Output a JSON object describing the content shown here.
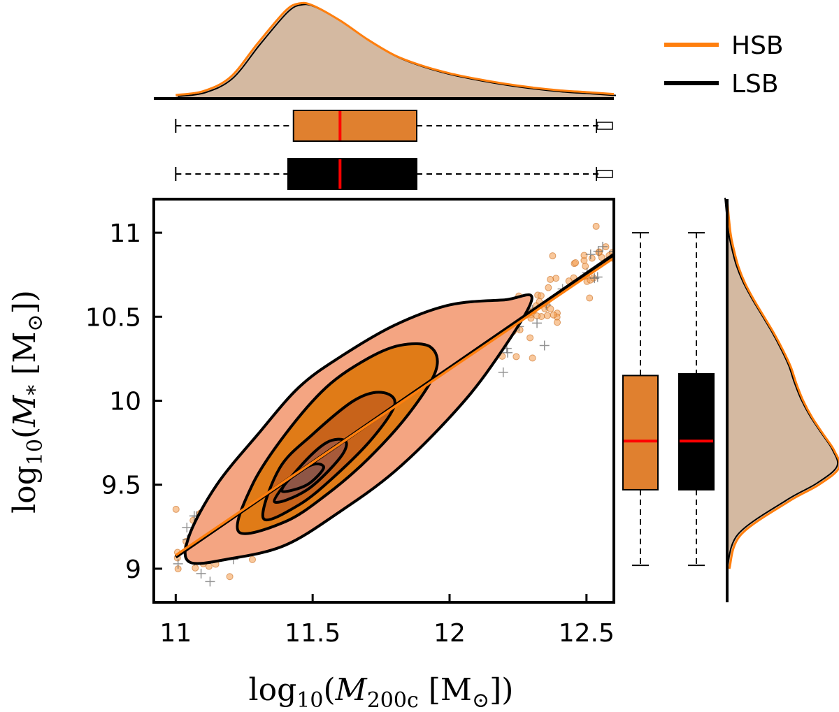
{
  "chart_data": {
    "type": "scatter",
    "xlabel_parts": {
      "pre": "log",
      "sub": "10",
      "open": "(",
      "mvar": "M",
      "msub": "200c",
      "unit": " [M",
      "sun": "⊙",
      "close": "])"
    },
    "ylabel_parts": {
      "pre": "log",
      "sub": "10",
      "open": "(",
      "mvar": "M",
      "msub": "*",
      "unit": " [M",
      "sun": "⊙",
      "close": "])"
    },
    "xlim": [
      10.92,
      12.6
    ],
    "ylim": [
      8.8,
      11.2
    ],
    "x_ticks": [
      11,
      11.5,
      12,
      12.5
    ],
    "x_tick_labels": [
      "11",
      "11.5",
      "12",
      "12.5"
    ],
    "y_ticks": [
      9,
      9.5,
      10,
      10.5,
      11
    ],
    "y_tick_labels": [
      "9",
      "9.5",
      "10",
      "10.5",
      "11"
    ],
    "series": [
      {
        "name": "HSB",
        "color": "#ff7f0e",
        "marker": "circle",
        "fit": {
          "x": [
            11,
            12.6
          ],
          "y": [
            9.08,
            10.85
          ]
        }
      },
      {
        "name": "LSB",
        "color": "#000000",
        "marker": "plus",
        "fit": {
          "x": [
            11,
            12.6
          ],
          "y": [
            9.07,
            10.87
          ]
        }
      }
    ],
    "x_marginal_boxplots": [
      {
        "series": "HSB",
        "color": "#e0802f",
        "whisker_low": 11.0,
        "q1": 11.43,
        "median": 11.6,
        "q3": 11.88,
        "whisker_high": 12.6
      },
      {
        "series": "LSB",
        "color": "#000000",
        "whisker_low": 11.0,
        "q1": 11.41,
        "median": 11.6,
        "q3": 11.88,
        "whisker_high": 12.6
      }
    ],
    "y_marginal_boxplots": [
      {
        "series": "HSB",
        "color": "#e0802f",
        "whisker_low": 9.02,
        "q1": 9.47,
        "median": 9.76,
        "q3": 10.15,
        "whisker_high": 11.0
      },
      {
        "series": "LSB",
        "color": "#000000",
        "whisker_low": 9.02,
        "q1": 9.47,
        "median": 9.76,
        "q3": 10.16,
        "whisker_high": 11.0
      }
    ],
    "x_density": {
      "x": [
        11.0,
        11.1,
        11.2,
        11.3,
        11.4,
        11.45,
        11.5,
        11.6,
        11.7,
        11.8,
        11.9,
        12.0,
        12.1,
        12.2,
        12.3,
        12.4,
        12.5,
        12.6
      ],
      "y": [
        0.03,
        0.07,
        0.22,
        0.58,
        0.92,
        1.0,
        0.98,
        0.82,
        0.62,
        0.45,
        0.34,
        0.26,
        0.2,
        0.15,
        0.11,
        0.08,
        0.06,
        0.04
      ]
    },
    "y_density": {
      "y": [
        9.0,
        9.2,
        9.4,
        9.5,
        9.6,
        9.7,
        9.8,
        9.9,
        10.0,
        10.1,
        10.2,
        10.3,
        10.4,
        10.5,
        10.6,
        10.7,
        10.8,
        10.9,
        11.0,
        11.2
      ],
      "d": [
        0.02,
        0.12,
        0.55,
        0.82,
        1.0,
        0.96,
        0.86,
        0.76,
        0.68,
        0.62,
        0.57,
        0.5,
        0.42,
        0.33,
        0.24,
        0.16,
        0.1,
        0.06,
        0.03,
        0.0
      ]
    },
    "contour_levels": [
      {
        "fill": "#f4a582",
        "pts": [
          [
            11.05,
            9.04
          ],
          [
            11.2,
            9.06
          ],
          [
            11.4,
            9.14
          ],
          [
            11.6,
            9.34
          ],
          [
            11.8,
            9.58
          ],
          [
            12.0,
            9.9
          ],
          [
            12.15,
            10.2
          ],
          [
            12.3,
            10.6
          ],
          [
            12.2,
            10.6
          ],
          [
            12.0,
            10.57
          ],
          [
            11.8,
            10.45
          ],
          [
            11.6,
            10.26
          ],
          [
            11.45,
            10.08
          ],
          [
            11.3,
            9.8
          ],
          [
            11.15,
            9.5
          ],
          [
            11.05,
            9.2
          ]
        ]
      },
      {
        "fill": "#e07b17",
        "pts": [
          [
            11.23,
            9.22
          ],
          [
            11.4,
            9.28
          ],
          [
            11.55,
            9.44
          ],
          [
            11.7,
            9.65
          ],
          [
            11.85,
            9.92
          ],
          [
            11.95,
            10.18
          ],
          [
            11.93,
            10.32
          ],
          [
            11.82,
            10.33
          ],
          [
            11.7,
            10.25
          ],
          [
            11.55,
            10.08
          ],
          [
            11.4,
            9.8
          ],
          [
            11.28,
            9.5
          ]
        ]
      },
      {
        "fill": "#c8631a",
        "pts": [
          [
            11.32,
            9.3
          ],
          [
            11.45,
            9.38
          ],
          [
            11.58,
            9.55
          ],
          [
            11.72,
            9.78
          ],
          [
            11.8,
            9.98
          ],
          [
            11.75,
            10.05
          ],
          [
            11.65,
            10.0
          ],
          [
            11.5,
            9.8
          ],
          [
            11.38,
            9.6
          ]
        ]
      },
      {
        "fill": "#a75a3a",
        "pts": [
          [
            11.36,
            9.4
          ],
          [
            11.48,
            9.47
          ],
          [
            11.6,
            9.66
          ],
          [
            11.62,
            9.76
          ],
          [
            11.55,
            9.75
          ],
          [
            11.45,
            9.6
          ]
        ]
      },
      {
        "fill": "#8e5646",
        "pts": [
          [
            11.39,
            9.46
          ],
          [
            11.48,
            9.5
          ],
          [
            11.54,
            9.6
          ],
          [
            11.5,
            9.62
          ],
          [
            11.42,
            9.54
          ]
        ]
      }
    ],
    "scatter_trend": {
      "slope": 1.12,
      "intercept_at_11": 9.08,
      "scatter_sd": 0.1
    },
    "legend": {
      "position": "top-right",
      "entries": [
        {
          "label": "HSB",
          "color": "#ff7f0e"
        },
        {
          "label": "LSB",
          "color": "#000000"
        }
      ]
    }
  }
}
